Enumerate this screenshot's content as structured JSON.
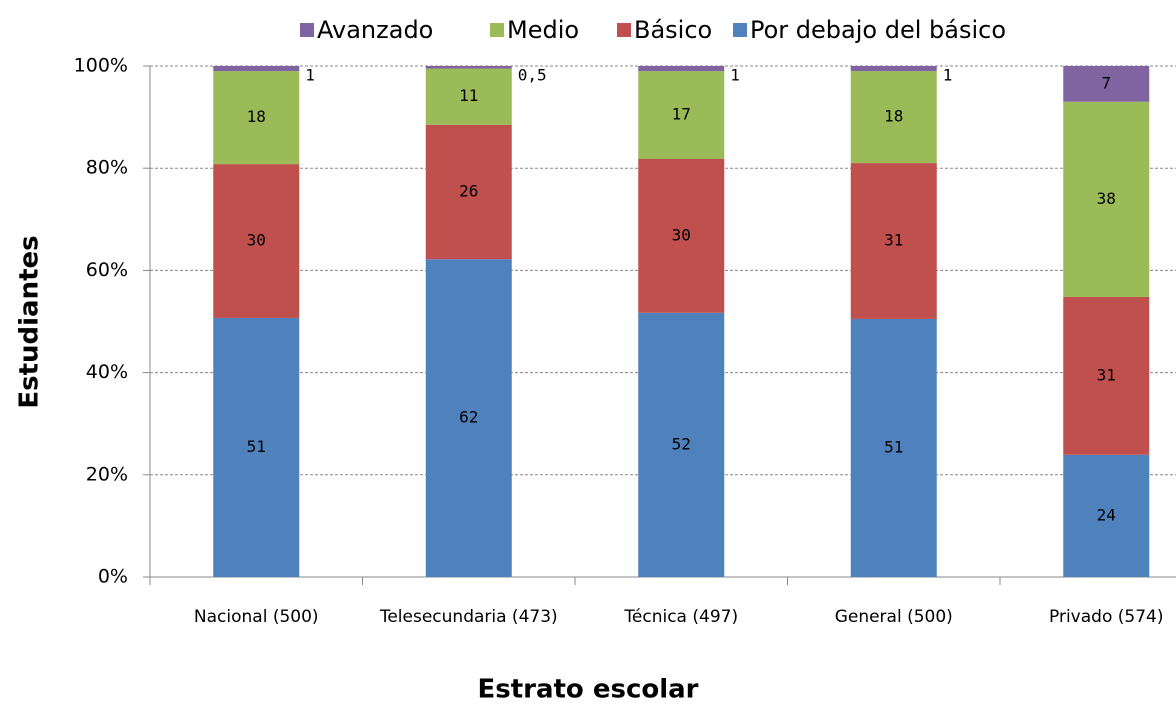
{
  "chart_data": {
    "type": "stacked_bar_100",
    "x_label": "Estrato escolar",
    "y_label": "Estudiantes",
    "categories": [
      "Nacional (500)",
      "Telesecundaria (473)",
      "Técnica (497)",
      "General (500)",
      "Privado (574)"
    ],
    "series": [
      {
        "name": "Avanzado",
        "color": "#8064a2",
        "values": [
          1.0,
          0.5,
          1.0,
          1.0,
          7.0
        ],
        "value_labels": [
          "1",
          "0,5",
          "1",
          "1",
          "7"
        ]
      },
      {
        "name": "Medio",
        "color": "#9bbb59",
        "values": [
          18.2,
          11.0,
          17.2,
          18.0,
          38.2
        ],
        "value_labels": [
          "18",
          "11",
          "17",
          "18",
          "38"
        ]
      },
      {
        "name": "Básico",
        "color": "#c0504d",
        "values": [
          30.1,
          26.3,
          30.1,
          30.5,
          30.9
        ],
        "value_labels": [
          "30",
          "26",
          "30",
          "31",
          "31"
        ]
      },
      {
        "name": "Por debajo del básico",
        "color": "#4f81bd",
        "values": [
          50.7,
          62.2,
          51.7,
          50.5,
          23.9
        ],
        "value_labels": [
          "51",
          "62",
          "52",
          "51",
          "24"
        ]
      }
    ],
    "ylim": [
      0,
      100
    ],
    "yticks": [
      {
        "value": 0,
        "label": "0%"
      },
      {
        "value": 20,
        "label": "20%"
      },
      {
        "value": 40,
        "label": "40%"
      },
      {
        "value": 60,
        "label": "60%"
      },
      {
        "value": 80,
        "label": "80%"
      },
      {
        "value": 100,
        "label": "100%"
      }
    ],
    "grid": true,
    "legend": "top"
  }
}
